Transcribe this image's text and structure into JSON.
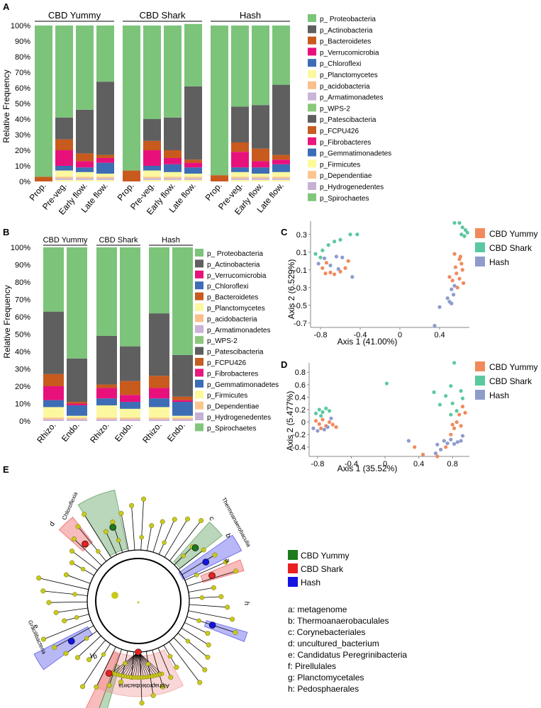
{
  "panel_labels": [
    "A",
    "B",
    "C",
    "D",
    "E"
  ],
  "colors": {
    "Proteobacteria": "#7cc47a",
    "Actinobacteria": "#5f5f5f",
    "Bacteroidetes": "#c85a1e",
    "Verrucomicrobia": "#e8117c",
    "Chloroflexi": "#3d6db5",
    "Planctomycetes": "#fbf8a0",
    "acidobacteria": "#f8c08c",
    "Armatimonadetes": "#c9b3d8",
    "WPS2": "#8bc87c",
    "Patescibacteria": "#5e5e5e",
    "FCPU426": "#c65d21",
    "Fibrobacteres": "#e8187e",
    "Gemmatimonadetes": "#3a6db5",
    "Firmicutes": "#fcfa9a",
    "Dependentiae": "#fbc68e",
    "Hydrogenedentes": "#c5b0d6",
    "Spirochaetes": "#82c67d",
    "CBD Yummy": "#f08a5d",
    "CBD Shark": "#5dc8a0",
    "Hash": "#8e9ccc",
    "lefse_green": "#1d7a1d",
    "lefse_red": "#e82020",
    "lefse_blue": "#1414e0",
    "node_yellow": "#c8c81e"
  },
  "chart_data": [
    {
      "id": "A",
      "type": "bar",
      "stacked": true,
      "ylabel": "Relative Frequency",
      "ylim": [
        0,
        100
      ],
      "yticks": [
        "0%",
        "10%",
        "20%",
        "30%",
        "40%",
        "50%",
        "60%",
        "70%",
        "80%",
        "90%",
        "100%"
      ],
      "groups": [
        "CBD Yummy",
        "CBD Shark",
        "Hash"
      ],
      "categories": [
        "Prop.",
        "Pre-veg.",
        "Early flow.",
        "Late flow."
      ],
      "legend": [
        "p_ Proteobacteria",
        "p_Actinobacteria",
        "p_Bacteroidetes",
        "p_Verrucomicrobia",
        "p_Chloroflexi",
        "p_Planctomycetes",
        "p_acidobacteria",
        "p_Armatimonadetes",
        "p_WPS-2",
        "p_Patescibacteria",
        "p_FCPU426",
        "p_Fibrobacteres",
        "p_Gemmatimonadetes",
        "p_Firmicutes",
        "p_Dependentiae",
        "p_Hydrogenedentes",
        "p_Spirochaetes"
      ],
      "series_order": [
        "Firmicutes",
        "Armatimonadetes",
        "Dependentiae",
        "Planctomycetes",
        "Chloroflexi",
        "Verrucomicrobia",
        "Bacteroidetes",
        "Actinobacteria",
        "Proteobacteria"
      ],
      "bars": [
        [
          0,
          0,
          0,
          0,
          0,
          0,
          3,
          0,
          97
        ],
        [
          1,
          1,
          1,
          4,
          3,
          10,
          7,
          14,
          59
        ],
        [
          1,
          1,
          1,
          3,
          3,
          4,
          5,
          28,
          54
        ],
        [
          1,
          1,
          1,
          2,
          7,
          3,
          2,
          47,
          36
        ],
        [
          0,
          0,
          0,
          0,
          0,
          0,
          7,
          0,
          93
        ],
        [
          1,
          1,
          1,
          4,
          3,
          10,
          6,
          14,
          60
        ],
        [
          1,
          1,
          1,
          3,
          5,
          4,
          5,
          21,
          59
        ],
        [
          1,
          1,
          1,
          2,
          4,
          3,
          2,
          47,
          40
        ],
        [
          0,
          0,
          0,
          0,
          0,
          0,
          4,
          0,
          96
        ],
        [
          1,
          1,
          1,
          3,
          3,
          10,
          6,
          23,
          52
        ],
        [
          1,
          1,
          1,
          2,
          4,
          4,
          8,
          28,
          51
        ],
        [
          1,
          1,
          1,
          3,
          5,
          3,
          3,
          45,
          38
        ]
      ]
    },
    {
      "id": "B",
      "type": "bar",
      "stacked": true,
      "ylabel": "Relative Frequency",
      "ylim": [
        0,
        100
      ],
      "yticks": [
        "0%",
        "10%",
        "20%",
        "30%",
        "40%",
        "50%",
        "60%",
        "70%",
        "80%",
        "90%",
        "100%"
      ],
      "groups": [
        "CBD Yummy",
        "CBD Shark",
        "Hash"
      ],
      "categories": [
        "Rhizo.",
        "Endo."
      ],
      "legend": [
        "p_ Proteobacteria",
        "p_Actinobacteria",
        "p_Verrucomicrobia",
        "p_Chloroflexi",
        "p_Bacteroidetes",
        "p_Planctomycetes",
        "p_acidobacteria",
        "p_Armatimonadetes",
        "p_WPS-2",
        "p_Patescibacteria",
        "p_FCPU426",
        "p_Fibrobacteres",
        "p_Gemmatimonadetes",
        "p_Firmicutes",
        "p_Dependentiae",
        "p_Hydrogenedentes",
        "p_Spirochaetes"
      ],
      "series_order": [
        "Armatimonadetes",
        "Dependentiae",
        "Planctomycetes",
        "Chloroflexi",
        "Verrucomicrobia",
        "Bacteroidetes",
        "Actinobacteria",
        "Proteobacteria"
      ],
      "bars": [
        [
          1,
          1,
          6,
          4,
          8,
          7,
          36,
          37
        ],
        [
          1,
          1,
          1,
          6,
          1,
          1,
          25,
          64
        ],
        [
          1,
          1,
          7,
          4,
          6,
          2,
          28,
          51
        ],
        [
          1,
          1,
          5,
          4,
          4,
          8,
          20,
          57
        ],
        [
          1,
          1,
          6,
          5,
          6,
          7,
          36,
          38
        ],
        [
          1,
          1,
          1,
          8,
          1,
          2,
          24,
          62
        ]
      ]
    },
    {
      "id": "C",
      "type": "scatter",
      "xlabel": "Axis 1 (41.00%)",
      "ylabel": "Axis 2 (6.529%)",
      "xlim": [
        -0.9,
        0.7
      ],
      "ylim": [
        -0.75,
        0.45
      ],
      "xticks": [
        -0.8,
        -0.4,
        0.0,
        0.4
      ],
      "yticks": [
        0.3,
        0.1,
        -0.1,
        -0.3,
        -0.5,
        -0.7
      ],
      "series": [
        {
          "name": "CBD Yummy",
          "points": [
            [
              -0.78,
              -0.08
            ],
            [
              -0.75,
              -0.14
            ],
            [
              -0.7,
              -0.13
            ],
            [
              -0.66,
              -0.15
            ],
            [
              -0.6,
              -0.12
            ],
            [
              -0.55,
              -0.08
            ],
            [
              -0.52,
              0.0
            ],
            [
              -0.74,
              -0.02
            ],
            [
              0.55,
              0.08
            ],
            [
              0.6,
              0.02
            ],
            [
              0.62,
              -0.03
            ],
            [
              0.56,
              -0.07
            ],
            [
              0.63,
              -0.1
            ],
            [
              0.57,
              -0.14
            ],
            [
              0.6,
              -0.2
            ],
            [
              0.53,
              -0.22
            ],
            [
              0.64,
              -0.25
            ],
            [
              0.58,
              -0.3
            ],
            [
              0.5,
              -0.18
            ],
            [
              0.61,
              0.05
            ]
          ]
        },
        {
          "name": "CBD Shark",
          "points": [
            [
              -0.85,
              0.08
            ],
            [
              -0.8,
              0.04
            ],
            [
              -0.72,
              0.18
            ],
            [
              -0.66,
              0.22
            ],
            [
              -0.6,
              0.24
            ],
            [
              -0.5,
              0.3
            ],
            [
              -0.43,
              0.3
            ],
            [
              -0.78,
              0.12
            ],
            [
              0.55,
              0.43
            ],
            [
              0.6,
              0.43
            ],
            [
              0.63,
              0.38
            ],
            [
              0.66,
              0.35
            ],
            [
              0.62,
              0.3
            ],
            [
              0.68,
              0.32
            ],
            [
              0.65,
              0.28
            ]
          ]
        },
        {
          "name": "Hash",
          "points": [
            [
              -0.82,
              -0.03
            ],
            [
              -0.76,
              0.03
            ],
            [
              -0.7,
              -0.05
            ],
            [
              -0.64,
              0.05
            ],
            [
              -0.62,
              -0.09
            ],
            [
              -0.58,
              0.04
            ],
            [
              -0.48,
              -0.18
            ],
            [
              0.55,
              -0.28
            ],
            [
              0.52,
              -0.32
            ],
            [
              0.54,
              -0.38
            ],
            [
              0.48,
              -0.42
            ],
            [
              0.5,
              -0.46
            ],
            [
              0.52,
              -0.48
            ],
            [
              0.4,
              -0.52
            ],
            [
              0.35,
              -0.73
            ]
          ]
        }
      ],
      "legend": [
        "CBD Yummy",
        "CBD Shark",
        "Hash"
      ]
    },
    {
      "id": "D",
      "type": "scatter",
      "xlabel": "Axis 1 (35.52%)",
      "ylabel": "Axis 2 (5.477%)",
      "xlim": [
        -0.9,
        1.0
      ],
      "ylim": [
        -0.55,
        0.95
      ],
      "xticks": [
        -0.8,
        -0.4,
        0.0,
        0.4,
        0.8
      ],
      "yticks": [
        0.8,
        0.6,
        0.4,
        0.2,
        0.0,
        -0.2,
        -0.4
      ],
      "series": [
        {
          "name": "CBD Yummy",
          "points": [
            [
              -0.82,
              0.02
            ],
            [
              -0.78,
              -0.03
            ],
            [
              -0.74,
              0.04
            ],
            [
              -0.7,
              -0.06
            ],
            [
              -0.66,
              0.0
            ],
            [
              -0.62,
              -0.04
            ],
            [
              -0.58,
              -0.08
            ],
            [
              -0.76,
              -0.1
            ],
            [
              0.35,
              -0.4
            ],
            [
              0.45,
              -0.52
            ],
            [
              0.62,
              -0.55
            ],
            [
              0.72,
              -0.4
            ],
            [
              0.78,
              -0.2
            ],
            [
              0.82,
              -0.1
            ],
            [
              0.85,
              0.0
            ],
            [
              0.9,
              -0.06
            ],
            [
              0.88,
              0.12
            ],
            [
              0.95,
              0.15
            ],
            [
              0.92,
              0.25
            ],
            [
              0.8,
              -0.04
            ]
          ]
        },
        {
          "name": "CBD Shark",
          "points": [
            [
              -0.82,
              0.14
            ],
            [
              -0.78,
              0.2
            ],
            [
              -0.74,
              0.16
            ],
            [
              -0.7,
              0.22
            ],
            [
              -0.66,
              0.18
            ],
            [
              -0.76,
              0.1
            ],
            [
              0.02,
              0.62
            ],
            [
              0.58,
              0.48
            ],
            [
              0.65,
              0.28
            ],
            [
              0.72,
              0.42
            ],
            [
              0.78,
              0.58
            ],
            [
              0.8,
              0.3
            ],
            [
              0.82,
              0.95
            ],
            [
              0.85,
              0.18
            ],
            [
              0.9,
              0.5
            ],
            [
              0.92,
              0.38
            ],
            [
              0.78,
              0.12
            ]
          ]
        },
        {
          "name": "Hash",
          "points": [
            [
              -0.85,
              -0.1
            ],
            [
              -0.8,
              -0.14
            ],
            [
              -0.72,
              -0.12
            ],
            [
              -0.68,
              -0.08
            ],
            [
              -0.64,
              0.06
            ],
            [
              0.28,
              -0.3
            ],
            [
              0.62,
              -0.36
            ],
            [
              0.66,
              -0.44
            ],
            [
              0.7,
              -0.3
            ],
            [
              0.74,
              -0.34
            ],
            [
              0.78,
              -0.28
            ],
            [
              0.82,
              -0.35
            ],
            [
              0.86,
              -0.32
            ],
            [
              0.9,
              -0.3
            ],
            [
              0.92,
              -0.22
            ],
            [
              0.6,
              -0.5
            ]
          ]
        }
      ],
      "legend": [
        "CBD Yummy",
        "CBD Shark",
        "Hash"
      ]
    }
  ],
  "cladogram": {
    "labels": [
      "Chloroflexia",
      "Thermoanaerobaculia",
      "Gracilibacteria",
      "Alphaproteobacteria"
    ],
    "markers": [
      "a",
      "b",
      "c",
      "d",
      "e",
      "f",
      "g",
      "h"
    ],
    "legend_groups": [
      "CBD Yummy",
      "CBD Shark",
      "Hash"
    ],
    "key": [
      "a: metagenome",
      "b: Thermoanaerobaculales",
      "c: Corynebacteriales",
      "d: uncultured_bacterium",
      "e: Candidatus Peregrinibacteria",
      "f: Pirellulales",
      "g: Planctomycetales",
      "h: Pedosphaerales"
    ]
  }
}
